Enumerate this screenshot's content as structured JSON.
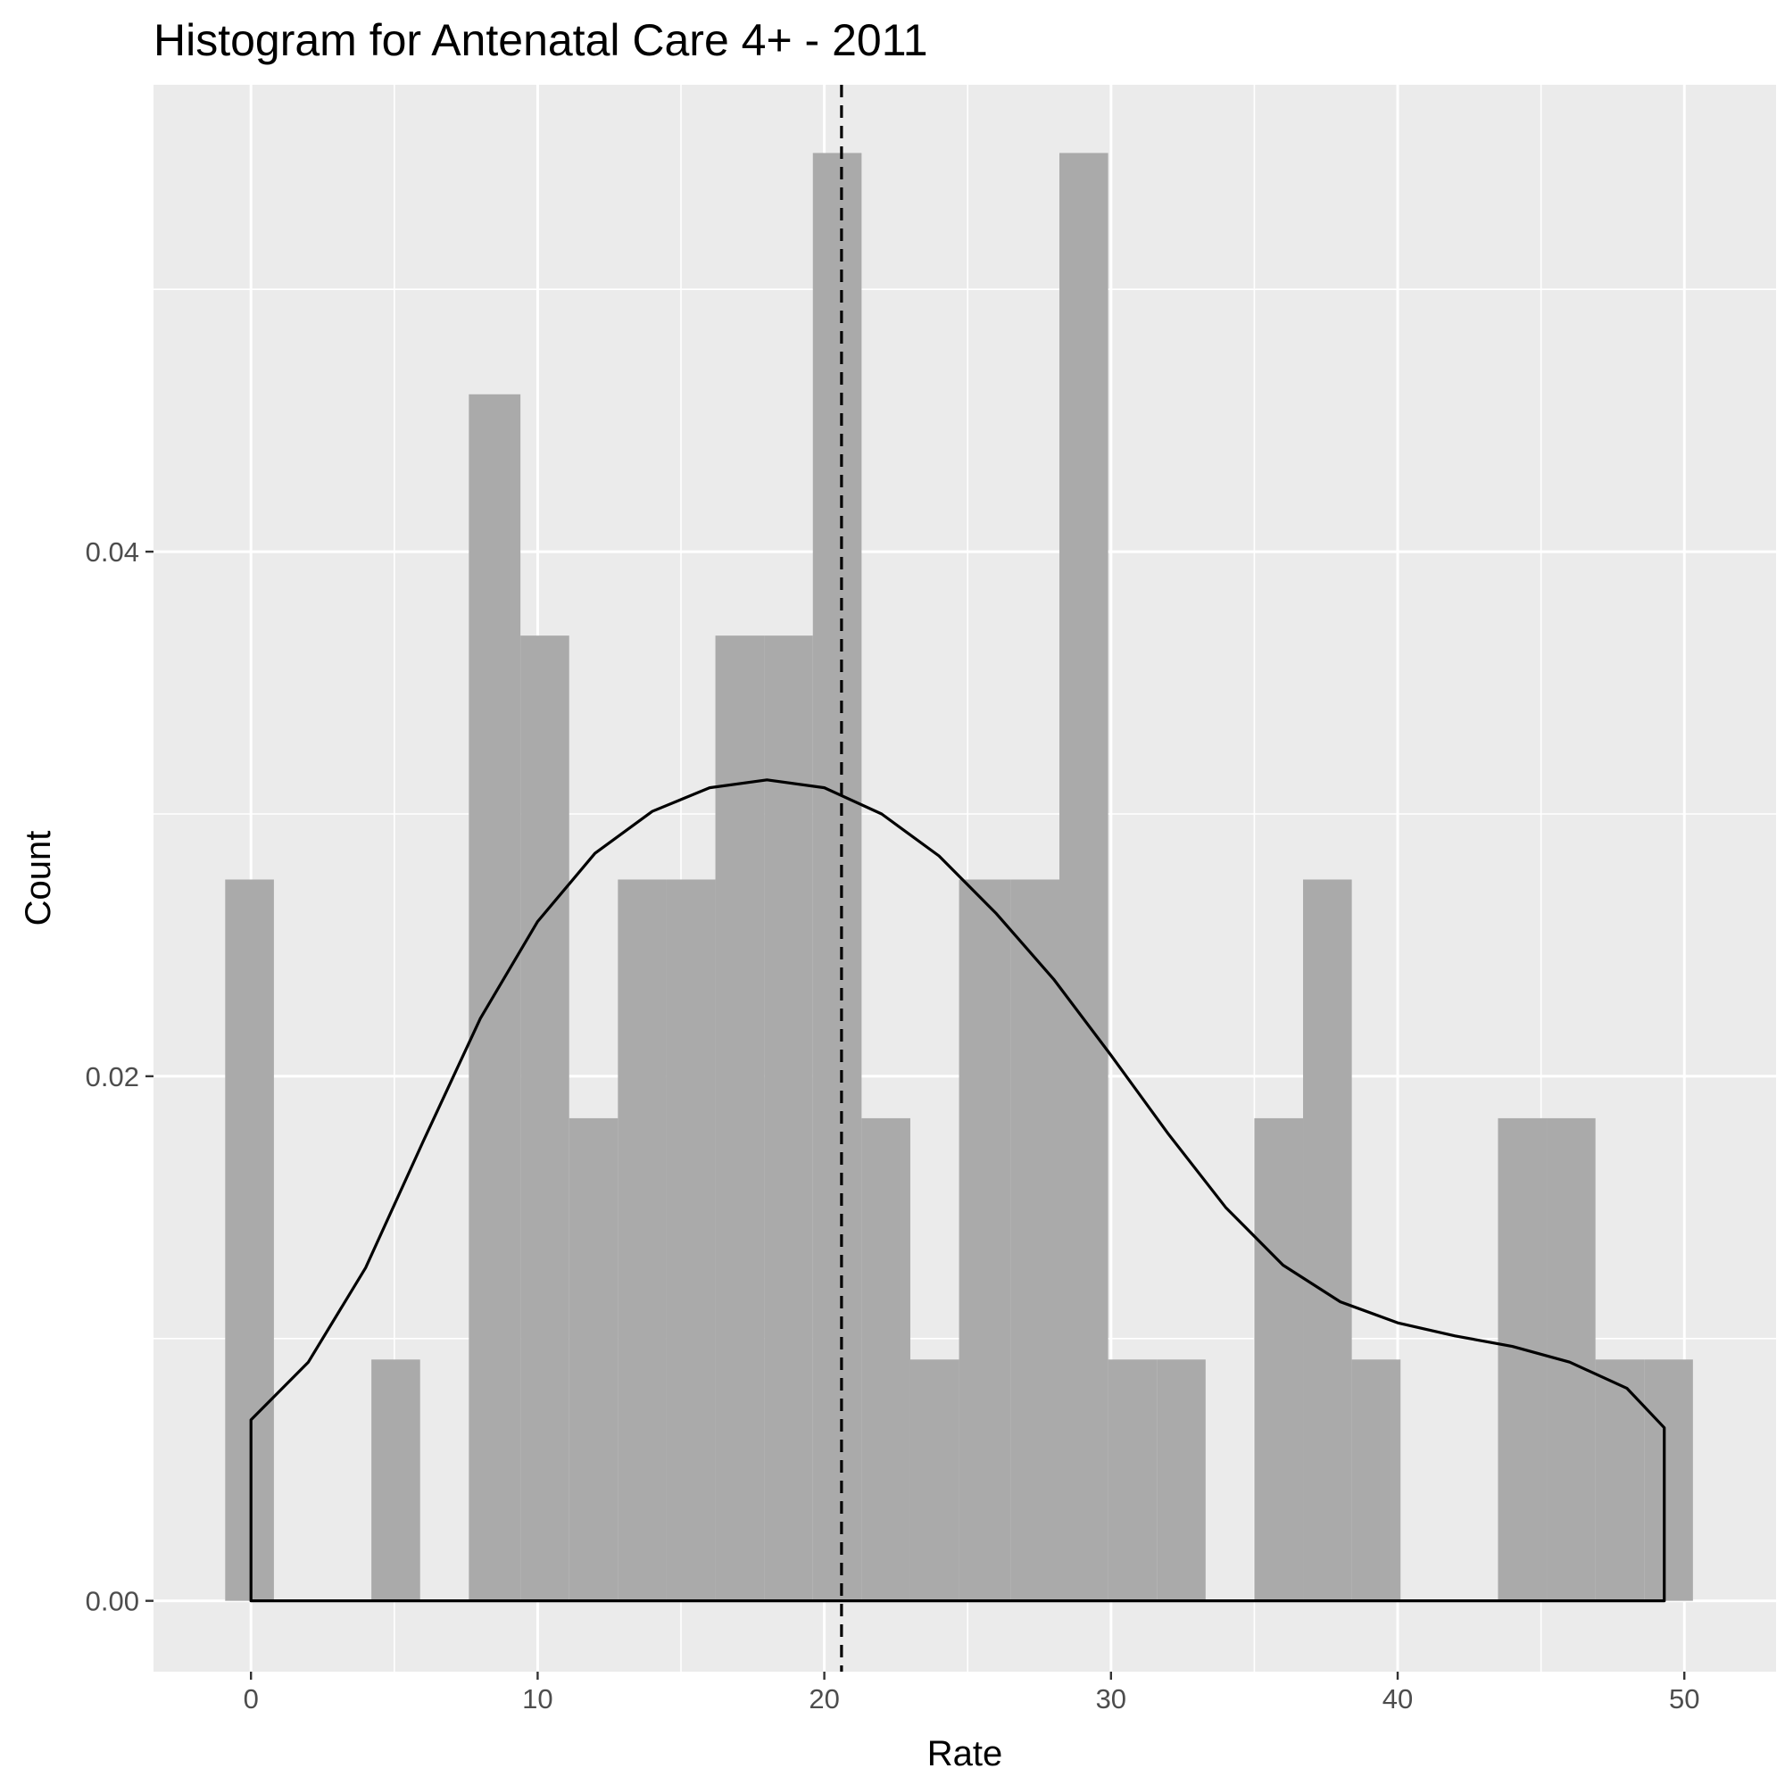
{
  "chart_data": {
    "type": "bar",
    "title": "Histogram for Antenatal Care 4+ - 2011",
    "xlabel": "Rate",
    "ylabel": "Count",
    "xlim": [
      -3.4,
      53.2
    ],
    "ylim": [
      -0.0027,
      0.0578
    ],
    "x_ticks": [
      0,
      10,
      20,
      30,
      40,
      50
    ],
    "x_tick_labels": [
      "0",
      "10",
      "20",
      "30",
      "40",
      "50"
    ],
    "y_ticks": [
      0.0,
      0.02,
      0.04
    ],
    "y_tick_labels": [
      "0.00",
      "0.02",
      "0.04"
    ],
    "x_minor_ticks": [
      5,
      15,
      25,
      35,
      45
    ],
    "y_minor_ticks": [
      0.01,
      0.03,
      0.05
    ],
    "grid": true,
    "bar_color": "#aaaaaa",
    "panel_color": "#ebebeb",
    "bins": [
      {
        "x0": -0.9,
        "x1": 0.8,
        "value": 0.0275
      },
      {
        "x0": 0.8,
        "x1": 2.5,
        "value": 0
      },
      {
        "x0": 2.5,
        "x1": 4.2,
        "value": 0
      },
      {
        "x0": 4.2,
        "x1": 5.9,
        "value": 0.0092
      },
      {
        "x0": 5.9,
        "x1": 7.6,
        "value": 0
      },
      {
        "x0": 7.6,
        "x1": 9.4,
        "value": 0.046
      },
      {
        "x0": 9.4,
        "x1": 11.1,
        "value": 0.0368
      },
      {
        "x0": 11.1,
        "x1": 12.8,
        "value": 0.0184
      },
      {
        "x0": 12.8,
        "x1": 14.5,
        "value": 0.0275
      },
      {
        "x0": 14.5,
        "x1": 16.2,
        "value": 0.0275
      },
      {
        "x0": 16.2,
        "x1": 17.9,
        "value": 0.0368
      },
      {
        "x0": 17.9,
        "x1": 19.6,
        "value": 0.0368
      },
      {
        "x0": 19.6,
        "x1": 21.3,
        "value": 0.0552
      },
      {
        "x0": 21.3,
        "x1": 23.0,
        "value": 0.0184
      },
      {
        "x0": 23.0,
        "x1": 24.7,
        "value": 0.0092
      },
      {
        "x0": 24.7,
        "x1": 26.5,
        "value": 0.0275
      },
      {
        "x0": 26.5,
        "x1": 28.2,
        "value": 0.0275
      },
      {
        "x0": 28.2,
        "x1": 29.9,
        "value": 0.0552
      },
      {
        "x0": 29.9,
        "x1": 31.6,
        "value": 0.0092
      },
      {
        "x0": 31.6,
        "x1": 33.3,
        "value": 0.0092
      },
      {
        "x0": 33.3,
        "x1": 35.0,
        "value": 0
      },
      {
        "x0": 35.0,
        "x1": 36.7,
        "value": 0.0184
      },
      {
        "x0": 36.7,
        "x1": 38.4,
        "value": 0.0275
      },
      {
        "x0": 38.4,
        "x1": 40.1,
        "value": 0.0092
      },
      {
        "x0": 40.1,
        "x1": 41.8,
        "value": 0
      },
      {
        "x0": 41.8,
        "x1": 43.5,
        "value": 0
      },
      {
        "x0": 43.5,
        "x1": 45.2,
        "value": 0.0184
      },
      {
        "x0": 45.2,
        "x1": 46.9,
        "value": 0.0184
      },
      {
        "x0": 46.9,
        "x1": 48.6,
        "value": 0.0092
      },
      {
        "x0": 48.6,
        "x1": 50.3,
        "value": 0.0092
      }
    ],
    "density_curve": [
      [
        0.0,
        0.0069
      ],
      [
        2.0,
        0.0091
      ],
      [
        4.0,
        0.0127
      ],
      [
        6.0,
        0.0175
      ],
      [
        8.0,
        0.0222
      ],
      [
        10.0,
        0.0259
      ],
      [
        12.0,
        0.0285
      ],
      [
        14.0,
        0.0301
      ],
      [
        16.0,
        0.031
      ],
      [
        18.0,
        0.0313
      ],
      [
        20.0,
        0.031
      ],
      [
        22.0,
        0.03
      ],
      [
        24.0,
        0.0284
      ],
      [
        26.0,
        0.0262
      ],
      [
        28.0,
        0.0237
      ],
      [
        30.0,
        0.0208
      ],
      [
        32.0,
        0.0178
      ],
      [
        34.0,
        0.015
      ],
      [
        36.0,
        0.0128
      ],
      [
        38.0,
        0.0114
      ],
      [
        40.0,
        0.0106
      ],
      [
        42.0,
        0.0101
      ],
      [
        44.0,
        0.0097
      ],
      [
        46.0,
        0.0091
      ],
      [
        48.0,
        0.0081
      ],
      [
        49.3,
        0.0066
      ]
    ],
    "density_closed_to_zero": true,
    "mean_line": {
      "x": 20.6,
      "style": "dashed"
    }
  }
}
